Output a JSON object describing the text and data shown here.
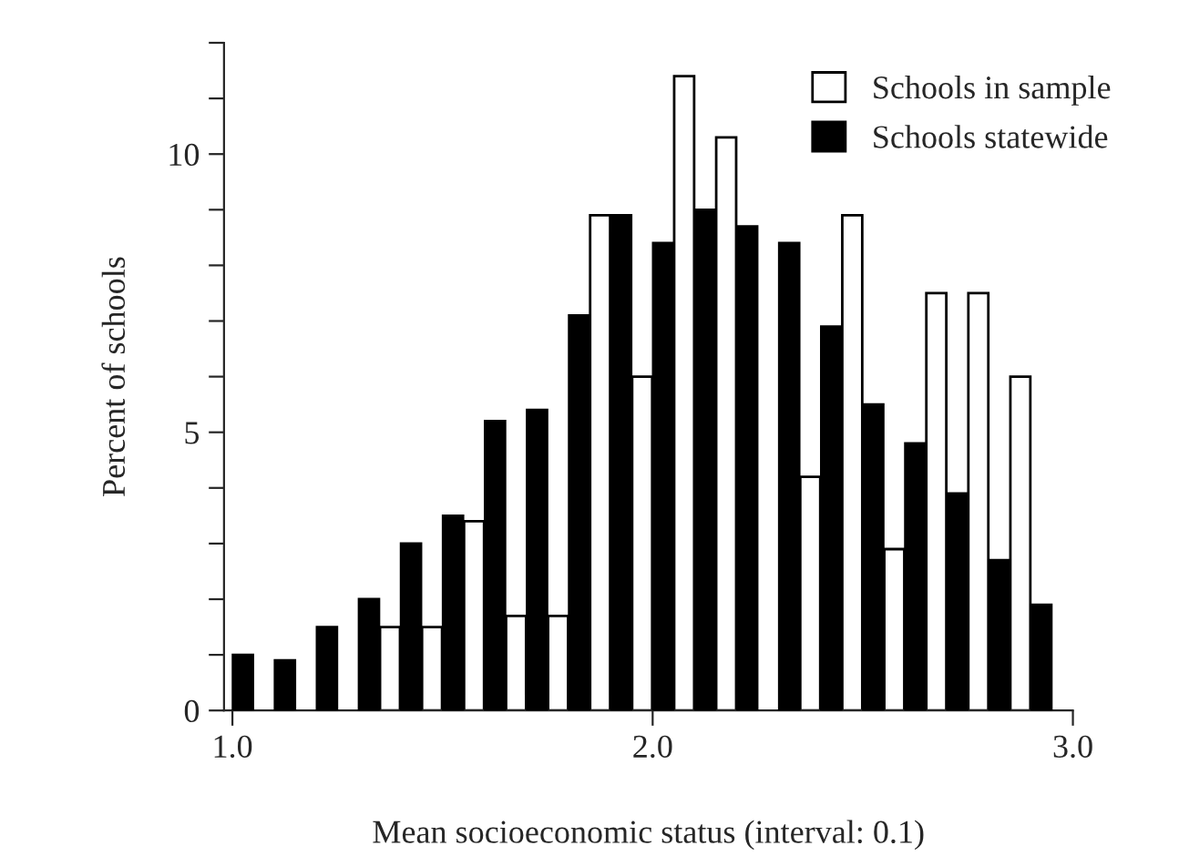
{
  "chart_data": {
    "type": "bar",
    "xlabel": "Mean socioeconomic status (interval: 0.1)",
    "ylabel": "Percent of schools",
    "series": [
      {
        "name": "Schools in sample",
        "color": "#ffffff",
        "x": [
          1.375,
          1.475,
          1.575,
          1.675,
          1.775,
          1.875,
          1.975,
          2.075,
          2.175,
          2.275,
          2.375,
          2.475,
          2.575,
          2.675,
          2.775,
          2.875
        ],
        "values": [
          1.5,
          1.5,
          3.4,
          1.7,
          1.7,
          8.9,
          6.0,
          11.4,
          10.3,
          null,
          4.2,
          8.9,
          2.9,
          7.5,
          7.5,
          6.0
        ]
      },
      {
        "name": "Schools statewide",
        "color": "#000000",
        "x": [
          1.025,
          1.125,
          1.225,
          1.325,
          1.425,
          1.525,
          1.625,
          1.725,
          1.825,
          1.925,
          2.025,
          2.125,
          2.225,
          2.325,
          2.425,
          2.525,
          2.625,
          2.725,
          2.825,
          2.925
        ],
        "values": [
          1.0,
          0.9,
          1.5,
          2.0,
          3.0,
          3.5,
          5.2,
          5.4,
          7.1,
          8.9,
          8.4,
          9.0,
          8.7,
          8.4,
          6.9,
          5.5,
          4.8,
          3.9,
          2.7,
          1.9
        ]
      }
    ],
    "xlim": [
      0.98,
      3.0
    ],
    "xticks": [
      {
        "value": 1.0,
        "label": "1.0"
      },
      {
        "value": 2.0,
        "label": "2.0"
      },
      {
        "value": 3.0,
        "label": "3.0"
      }
    ],
    "ylim": [
      0,
      12
    ],
    "yticks": [
      0,
      {
        "value": 1,
        "label": null
      },
      {
        "value": 2,
        "label": null
      },
      {
        "value": 3,
        "label": null
      },
      {
        "value": 4,
        "label": null
      },
      5,
      {
        "value": 6,
        "label": null
      },
      {
        "value": 7,
        "label": null
      },
      {
        "value": 8,
        "label": null
      },
      {
        "value": 9,
        "label": null
      },
      10,
      {
        "value": 11,
        "label": null
      },
      {
        "value": 12,
        "label": null
      }
    ],
    "legend": "top right",
    "grid": false
  }
}
